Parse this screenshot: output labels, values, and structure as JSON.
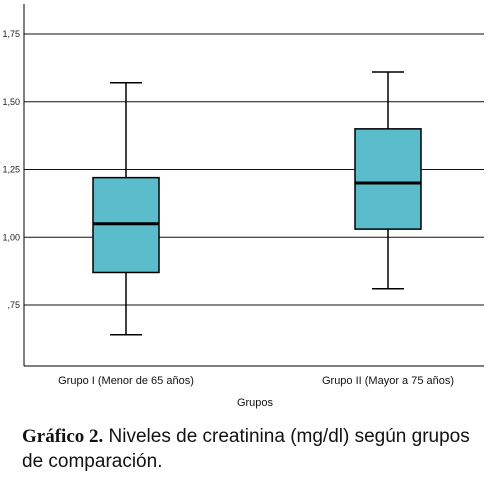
{
  "chart_data": {
    "type": "boxplot",
    "xlabel": "Grupos",
    "ylabel": "",
    "ylim": [
      0.5,
      1.83
    ],
    "yticks": [
      {
        "value": 0.75,
        "label": ",75"
      },
      {
        "value": 1.0,
        "label": "1,00"
      },
      {
        "value": 1.25,
        "label": "1,25"
      },
      {
        "value": 1.5,
        "label": "1,50"
      },
      {
        "value": 1.75,
        "label": "1,75"
      }
    ],
    "grid": true,
    "box_color": "#5bbccc",
    "categories": [
      "Grupo I (Menor de 65 años)",
      "Grupo II (Mayor a 75 años)"
    ],
    "boxes": [
      {
        "min": 0.64,
        "q1": 0.87,
        "median": 1.05,
        "q3": 1.22,
        "max": 1.57
      },
      {
        "min": 0.81,
        "q1": 1.03,
        "median": 1.2,
        "q3": 1.4,
        "max": 1.61
      }
    ]
  },
  "caption": {
    "label": "Gráfico 2.",
    "text": " Niveles de creatinina (mg/dl) según grupos de comparación."
  }
}
